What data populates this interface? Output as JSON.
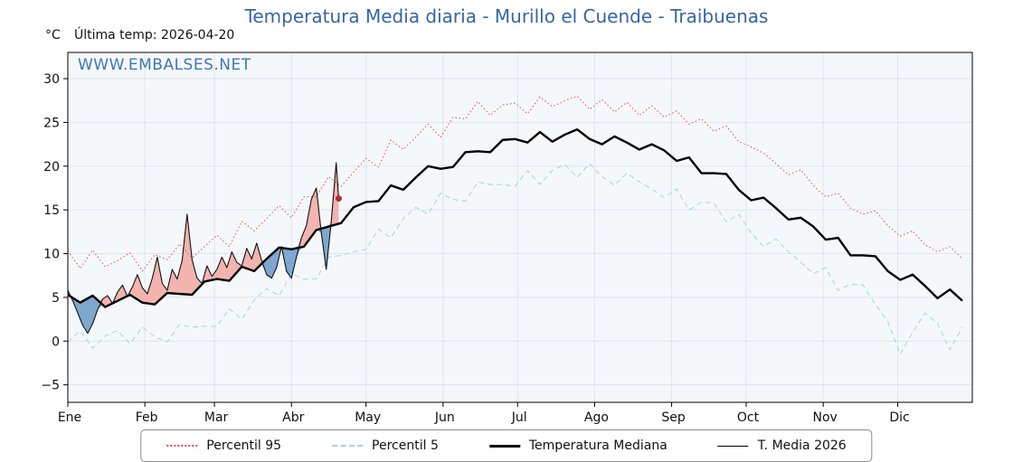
{
  "title": "Temperatura Media diaria - Murillo el Cuende - Traibuenas",
  "unit_label": "°C",
  "last_temp_label": "Última temp: 2026-04-20",
  "watermark": "WWW.EMBALSES.NET",
  "colors": {
    "title": "#3465a8",
    "watermark": "#3f77b5",
    "plot_bg": "#f5f8fb",
    "grid": "#dde5ec",
    "percentil95": "#e04b4b",
    "percentil5": "#a5d2e8",
    "mediana": "#000000",
    "media2026": "#111111",
    "fill_above": "#f3b4b0",
    "fill_below": "#7fa8cf",
    "end_dot": "#b03030"
  },
  "legend": {
    "items": [
      {
        "label": "Percentil 95"
      },
      {
        "label": "Percentil 5"
      },
      {
        "label": "Temperatura Mediana"
      },
      {
        "label": "T. Media 2026"
      }
    ]
  },
  "chart_data": {
    "type": "line",
    "title": "Temperatura Media diaria - Murillo el Cuende - Traibuenas",
    "xlabel": "",
    "ylabel": "°C",
    "grid": true,
    "legend_position": "bottom",
    "x_axis": {
      "range": [
        1,
        365
      ],
      "months": [
        {
          "label": "Ene",
          "day": 1
        },
        {
          "label": "Feb",
          "day": 32
        },
        {
          "label": "Mar",
          "day": 60
        },
        {
          "label": "Abr",
          "day": 91
        },
        {
          "label": "May",
          "day": 121
        },
        {
          "label": "Jun",
          "day": 152
        },
        {
          "label": "Jul",
          "day": 182
        },
        {
          "label": "Ago",
          "day": 213
        },
        {
          "label": "Sep",
          "day": 244
        },
        {
          "label": "Oct",
          "day": 274
        },
        {
          "label": "Nov",
          "day": 305
        },
        {
          "label": "Dic",
          "day": 335
        }
      ]
    },
    "y_axis": {
      "range": [
        -7,
        33
      ],
      "ticks": [
        -5,
        0,
        5,
        10,
        15,
        20,
        25,
        30
      ],
      "labels": [
        "−5",
        "0",
        "5",
        "10",
        "15",
        "20",
        "25",
        "30"
      ]
    },
    "series": [
      {
        "id": "percentil-95",
        "name": "Percentil 95",
        "color": "#e04b4b",
        "style": "dotted",
        "width": 1,
        "x_start": 1,
        "x_step": 5,
        "values": [
          10.3,
          8.3,
          10.4,
          8.5,
          9.2,
          10.1,
          8.0,
          9.9,
          9.3,
          11.1,
          9.5,
          10.8,
          12.1,
          10.8,
          13.7,
          12.6,
          14.0,
          15.5,
          14.1,
          16.5,
          16.5,
          18.8,
          17.7,
          19.3,
          20.9,
          19.9,
          23.0,
          21.9,
          23.3,
          24.8,
          23.3,
          25.6,
          25.4,
          27.4,
          25.8,
          27.0,
          27.2,
          26.0,
          27.9,
          26.8,
          27.5,
          28.0,
          26.5,
          27.6,
          26.2,
          27.3,
          25.8,
          26.9,
          25.6,
          26.3,
          24.8,
          25.4,
          24.0,
          24.6,
          22.8,
          22.2,
          21.5,
          20.3,
          19.0,
          19.6,
          17.8,
          16.5,
          16.9,
          15.2,
          14.5,
          14.9,
          13.2,
          12.0,
          12.6,
          11.0,
          10.2,
          10.8,
          9.4
        ]
      },
      {
        "id": "percentil-5",
        "name": "Percentil 5",
        "color": "#a5d2e8",
        "style": "dashed",
        "width": 1,
        "x_start": 1,
        "x_step": 5,
        "values": [
          -0.1,
          1.2,
          -0.8,
          0.6,
          1.2,
          -0.3,
          1.6,
          0.5,
          -0.1,
          1.9,
          1.6,
          1.7,
          1.7,
          3.7,
          2.5,
          4.7,
          6.0,
          5.2,
          7.7,
          7.1,
          7.1,
          9.6,
          9.8,
          10.2,
          10.5,
          12.8,
          11.8,
          14.0,
          15.3,
          14.5,
          16.9,
          16.2,
          16.0,
          18.2,
          17.9,
          17.9,
          17.7,
          19.5,
          17.9,
          19.5,
          20.2,
          18.7,
          20.3,
          18.8,
          17.8,
          19.2,
          18.2,
          17.4,
          16.4,
          17.4,
          15.0,
          15.9,
          15.8,
          13.6,
          14.5,
          12.4,
          10.8,
          11.7,
          10.2,
          9.0,
          7.7,
          8.4,
          5.8,
          6.5,
          6.4,
          4.2,
          2.2,
          -1.5,
          1.0,
          3.2,
          2.0,
          -1.0,
          1.6
        ]
      },
      {
        "id": "mediana",
        "name": "Temperatura Mediana",
        "color": "#000000",
        "style": "solid",
        "width": 2.4,
        "x_start": 1,
        "x_step": 5,
        "values": [
          5.3,
          4.4,
          5.2,
          3.9,
          4.6,
          5.3,
          4.4,
          4.2,
          5.5,
          5.4,
          5.3,
          6.8,
          7.1,
          6.9,
          8.5,
          8.0,
          9.4,
          10.7,
          10.5,
          10.8,
          12.7,
          13.1,
          13.5,
          15.3,
          15.9,
          16.0,
          17.8,
          17.3,
          18.7,
          20.0,
          19.7,
          19.9,
          21.6,
          21.7,
          21.6,
          23.0,
          23.1,
          22.7,
          23.9,
          22.8,
          23.6,
          24.2,
          23.1,
          22.5,
          23.4,
          22.7,
          21.9,
          22.5,
          21.8,
          20.6,
          21.0,
          19.2,
          19.2,
          19.1,
          17.3,
          16.1,
          16.4,
          15.2,
          13.9,
          14.1,
          13.1,
          11.6,
          11.8,
          9.8,
          9.8,
          9.7,
          8.0,
          7.0,
          7.6,
          6.3,
          4.9,
          5.9,
          4.6
        ]
      },
      {
        "id": "media-2026",
        "name": "T. Media 2026",
        "color": "#111111",
        "style": "solid",
        "width": 1.1,
        "fill_reference": "Temperatura Mediana",
        "fill_above_color": "#f3b4b0",
        "fill_below_color": "#7fa8cf",
        "end_dot_color": "#b03030",
        "x": [
          1,
          3,
          5,
          7,
          9,
          11,
          13,
          15,
          17,
          19,
          21,
          23,
          25,
          27,
          29,
          31,
          33,
          35,
          37,
          39,
          41,
          43,
          45,
          47,
          49,
          51,
          53,
          55,
          57,
          59,
          61,
          63,
          65,
          67,
          69,
          71,
          73,
          75,
          77,
          79,
          81,
          83,
          85,
          87,
          89,
          91,
          93,
          95,
          97,
          99,
          101,
          103,
          105,
          107,
          109,
          110
        ],
        "values": [
          5.8,
          4.6,
          3.2,
          1.8,
          0.9,
          2.0,
          3.6,
          4.8,
          5.2,
          4.3,
          5.6,
          6.4,
          5.1,
          6.2,
          7.6,
          6.1,
          5.4,
          7.2,
          9.6,
          6.6,
          5.8,
          8.2,
          7.1,
          9.2,
          14.5,
          9.3,
          7.2,
          6.6,
          8.6,
          7.4,
          8.2,
          9.6,
          8.4,
          10.2,
          9.0,
          8.6,
          10.6,
          9.4,
          11.2,
          9.2,
          7.6,
          7.2,
          8.4,
          10.8,
          8.0,
          7.2,
          9.6,
          11.8,
          13.2,
          16.2,
          17.5,
          12.4,
          8.2,
          13.6,
          20.4,
          16.3
        ]
      }
    ]
  }
}
